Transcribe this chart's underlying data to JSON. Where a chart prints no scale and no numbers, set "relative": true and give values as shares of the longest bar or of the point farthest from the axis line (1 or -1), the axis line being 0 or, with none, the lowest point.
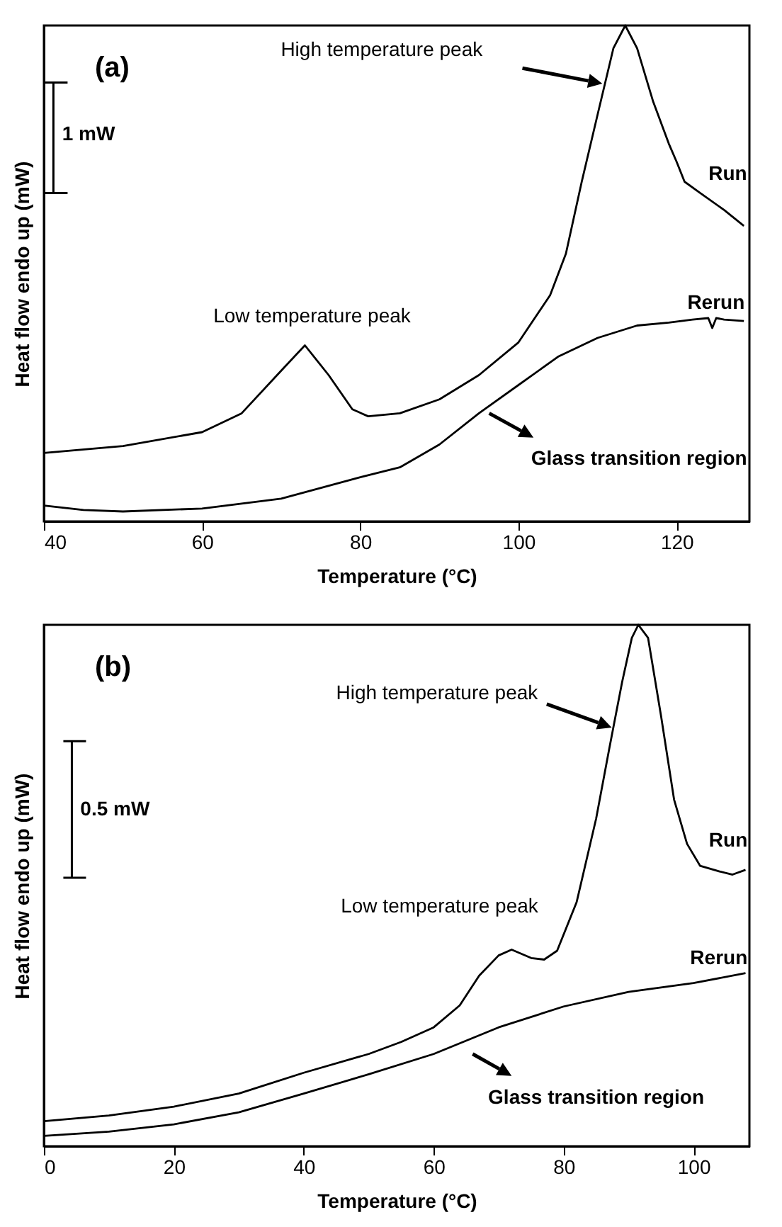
{
  "chart_data": [
    {
      "type": "line",
      "title": "(a)",
      "xlabel": "Temperature (°C)",
      "ylabel": "Heat flow endo up (mW)",
      "relative": true,
      "xlim": [
        40,
        129.2
      ],
      "xticks": [
        40,
        60,
        80,
        100,
        120
      ],
      "legend": false,
      "grid": false,
      "marker": "none",
      "line_style": "solid",
      "annotations": [
        "High temperature peak",
        "Low temperature peak",
        "Run",
        "Rerun",
        "Glass transition region",
        "1 mW"
      ],
      "series": [
        {
          "color": "#000000",
          "x": [
            40,
            50,
            60,
            65,
            70,
            73,
            76,
            79,
            81,
            85,
            90,
            95,
            100,
            104,
            106,
            108,
            110,
            112,
            113.5,
            115,
            117,
            119,
            120,
            121,
            123,
            126,
            128.5
          ],
          "values": [
            0.138,
            0.152,
            0.18,
            0.218,
            0.304,
            0.355,
            0.295,
            0.226,
            0.212,
            0.218,
            0.246,
            0.295,
            0.361,
            0.456,
            0.54,
            0.685,
            0.82,
            0.954,
            1,
            0.954,
            0.848,
            0.762,
            0.725,
            0.685,
            0.662,
            0.628,
            0.596
          ]
        },
        {
          "color": "#000000",
          "x": [
            40,
            45,
            50,
            60,
            70,
            80,
            85,
            90,
            95,
            100,
            105,
            110,
            115,
            119,
            122,
            124,
            124.5,
            125,
            126,
            128.5
          ],
          "values": [
            0.032,
            0.023,
            0.02,
            0.026,
            0.046,
            0.089,
            0.109,
            0.155,
            0.218,
            0.275,
            0.332,
            0.37,
            0.395,
            0.401,
            0.407,
            0.41,
            0.39,
            0.41,
            0.407,
            0.404
          ]
        }
      ]
    },
    {
      "type": "line",
      "title": "(b)",
      "xlabel": "Temperature (°C)",
      "ylabel": "Heat flow endo up (mW)",
      "relative": true,
      "xlim": [
        0,
        108.6
      ],
      "xticks": [
        0,
        20,
        40,
        60,
        80,
        100
      ],
      "legend": false,
      "grid": false,
      "marker": "none",
      "line_style": "solid",
      "annotations": [
        "High temperature peak",
        "Low temperature peak",
        "Run",
        "Rerun",
        "Glass transition region",
        "0.5 mW"
      ],
      "series": [
        {
          "color": "#000000",
          "x": [
            0,
            10,
            20,
            30,
            40,
            50,
            55,
            60,
            64,
            67,
            70,
            72,
            75,
            77,
            79,
            82,
            85,
            87,
            89,
            90.5,
            91.5,
            93,
            95,
            97,
            99,
            101,
            104,
            106,
            108
          ],
          "values": [
            0.048,
            0.059,
            0.076,
            0.101,
            0.141,
            0.177,
            0.2,
            0.228,
            0.27,
            0.327,
            0.366,
            0.377,
            0.361,
            0.358,
            0.375,
            0.468,
            0.628,
            0.761,
            0.89,
            0.975,
            1,
            0.975,
            0.825,
            0.665,
            0.58,
            0.538,
            0.527,
            0.521,
            0.53
          ]
        },
        {
          "color": "#000000",
          "x": [
            0,
            10,
            20,
            30,
            40,
            50,
            60,
            70,
            80,
            90,
            100,
            108
          ],
          "values": [
            0.02,
            0.028,
            0.042,
            0.065,
            0.101,
            0.138,
            0.177,
            0.228,
            0.268,
            0.296,
            0.313,
            0.332
          ]
        }
      ]
    }
  ]
}
